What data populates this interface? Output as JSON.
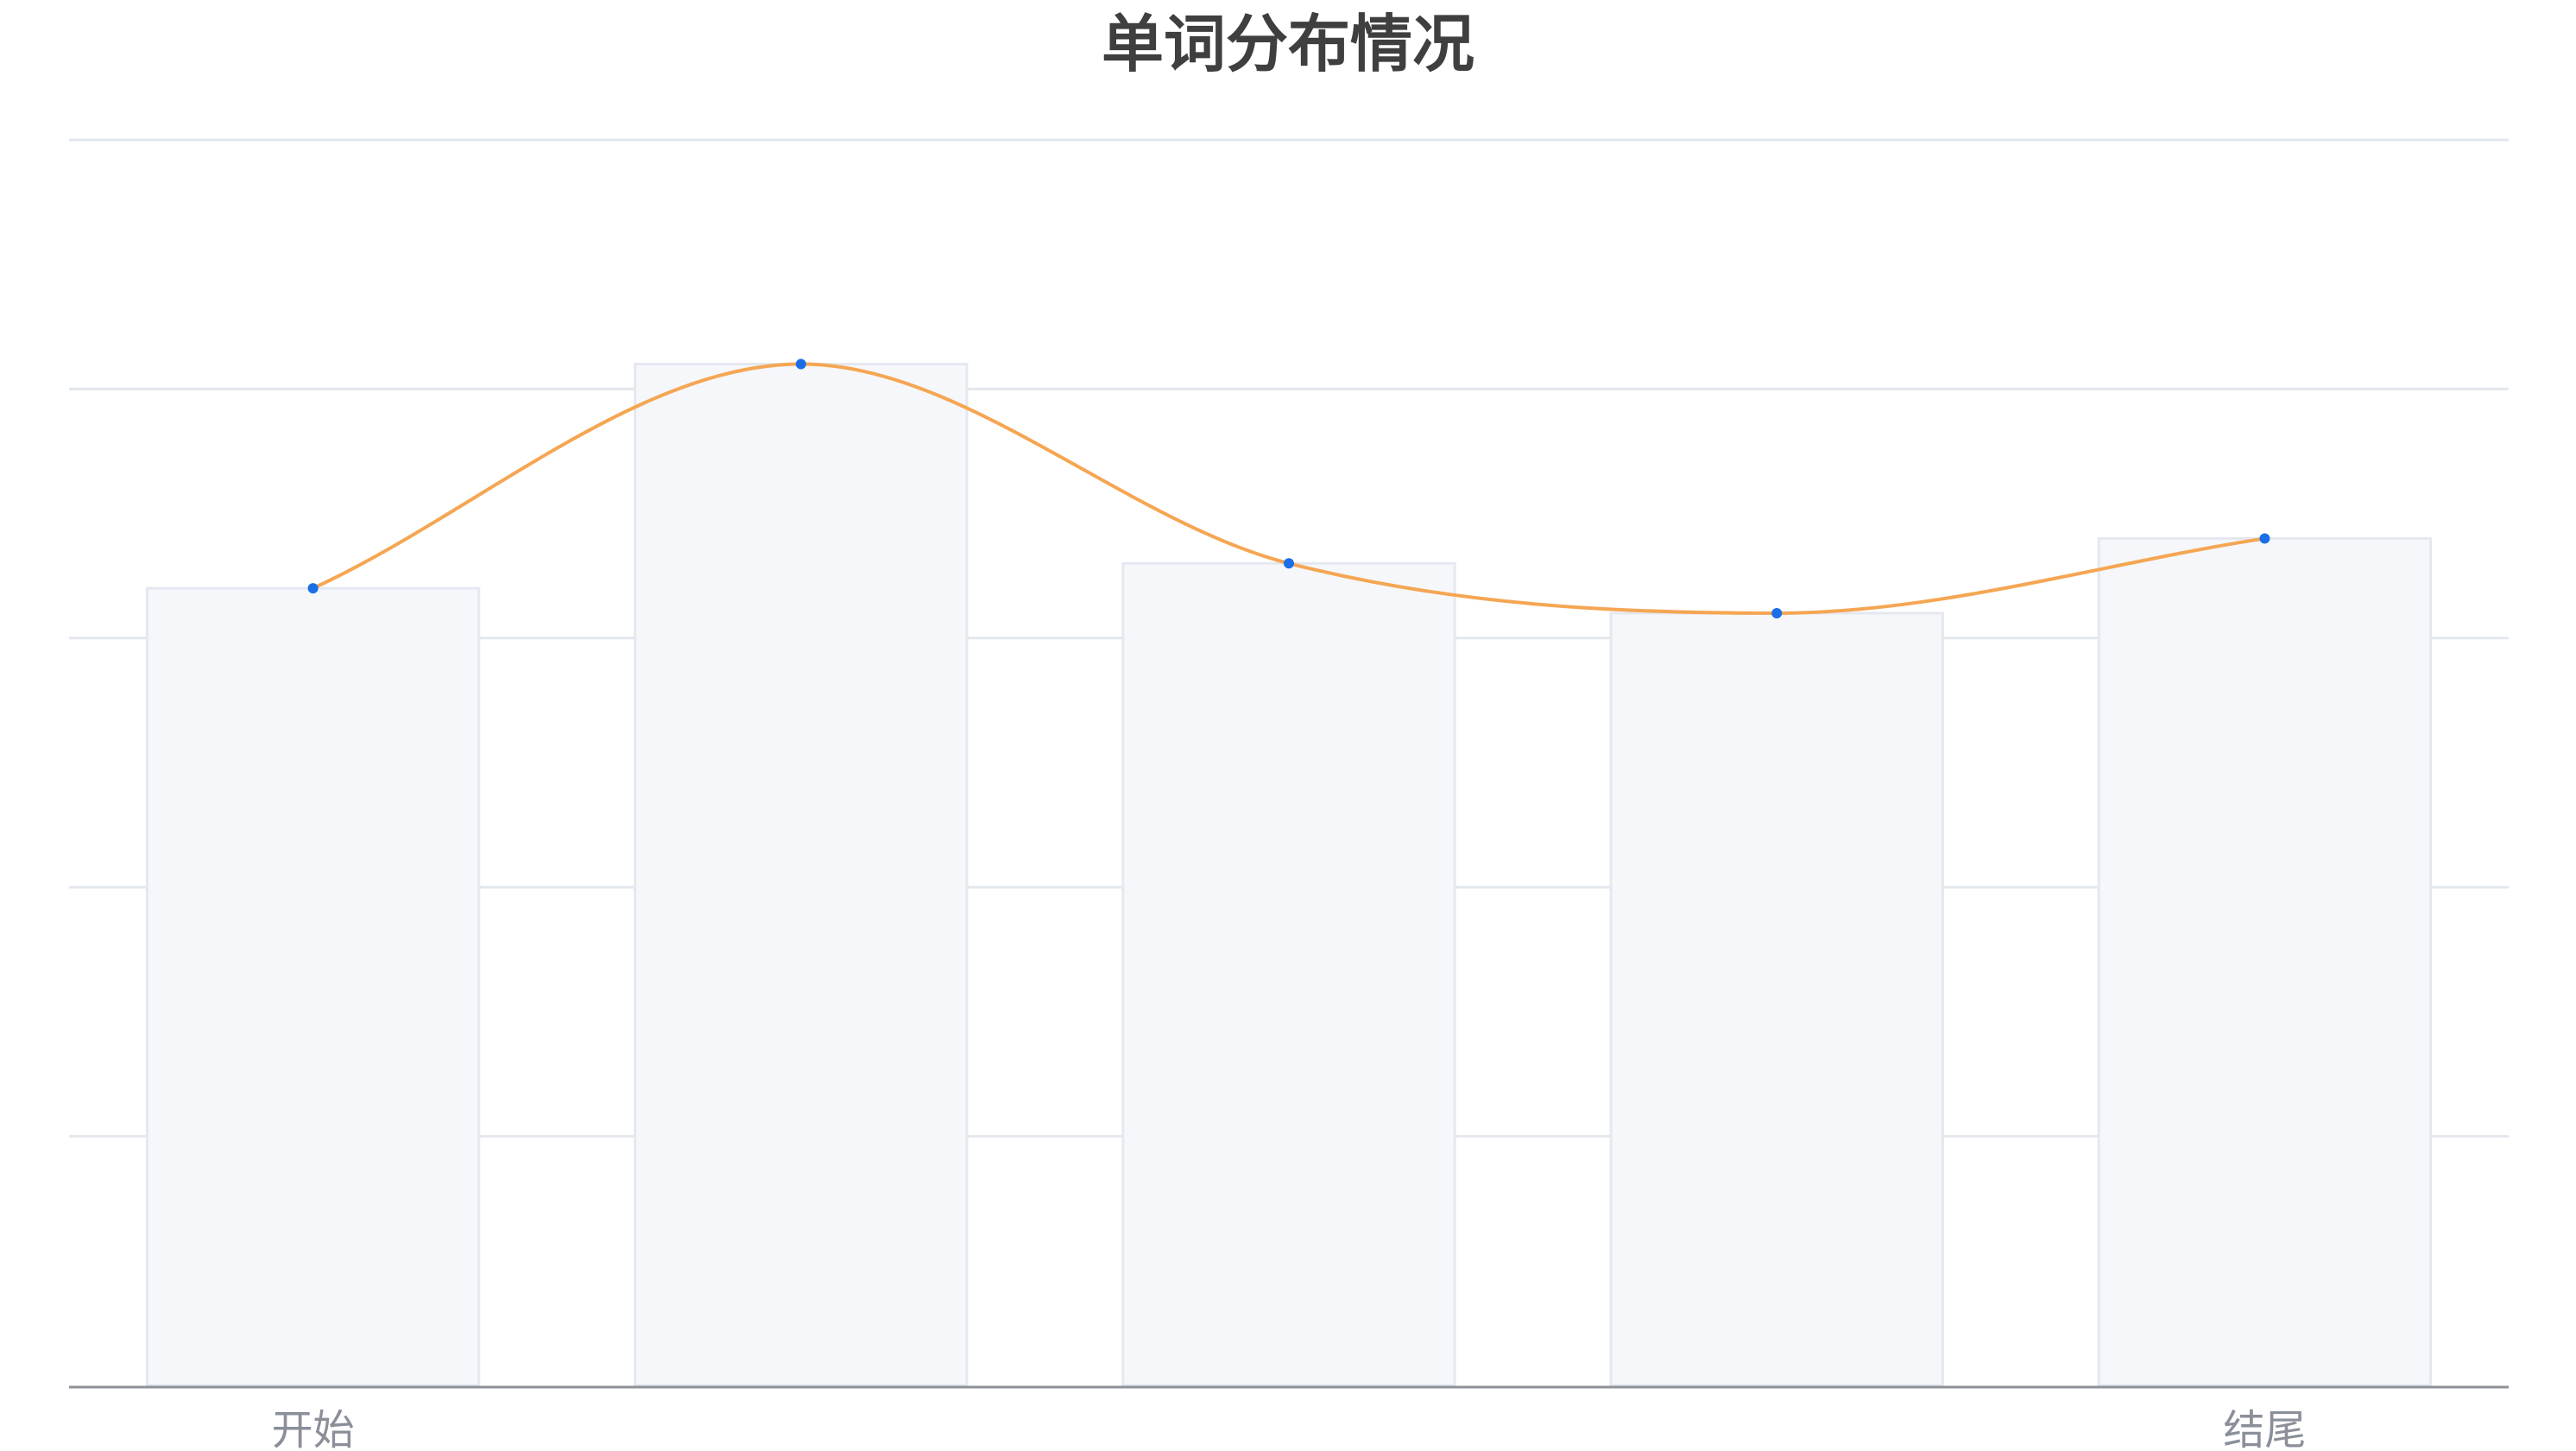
{
  "chart_data": {
    "type": "bar",
    "title": "单词分布情况",
    "categories": [
      "开始",
      "",
      "",
      "",
      "结尾"
    ],
    "series": [
      {
        "type": "bar",
        "values": [
          3.2,
          4.1,
          3.3,
          3.1,
          3.4
        ]
      },
      {
        "type": "line",
        "smooth": true,
        "values": [
          3.2,
          4.1,
          3.3,
          3.1,
          3.4
        ]
      }
    ],
    "ylim": [
      0,
      5
    ],
    "grid": true,
    "colors": {
      "bar_fill": "#f5f7fb",
      "bar_stroke": "#e4e8ef",
      "line": "#f5a653",
      "point": "#1a6fe8",
      "grid": "#e3e8ee",
      "axis": "#8e9298"
    }
  }
}
